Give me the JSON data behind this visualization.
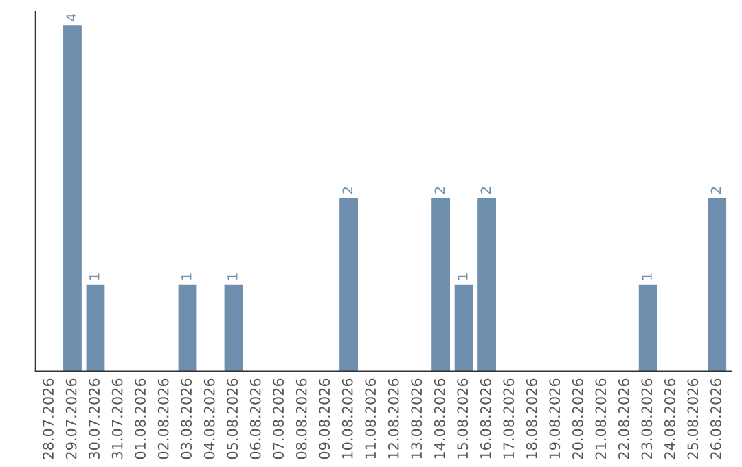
{
  "chart_data": {
    "type": "bar",
    "categories": [
      "28.07.2026",
      "29.07.2026",
      "30.07.2026",
      "31.07.2026",
      "01.08.2026",
      "02.08.2026",
      "03.08.2026",
      "04.08.2026",
      "05.08.2026",
      "06.08.2026",
      "07.08.2026",
      "08.08.2026",
      "09.08.2026",
      "10.08.2026",
      "11.08.2026",
      "12.08.2026",
      "13.08.2026",
      "14.08.2026",
      "15.08.2026",
      "16.08.2026",
      "17.08.2026",
      "18.08.2026",
      "19.08.2026",
      "20.08.2026",
      "21.08.2026",
      "22.08.2026",
      "23.08.2026",
      "24.08.2026",
      "25.08.2026",
      "26.08.2026"
    ],
    "values": [
      0,
      4,
      1,
      0,
      0,
      0,
      1,
      0,
      1,
      0,
      0,
      0,
      0,
      2,
      0,
      0,
      0,
      2,
      1,
      2,
      0,
      0,
      0,
      0,
      0,
      0,
      1,
      0,
      0,
      2
    ],
    "value_labels": [
      null,
      "4",
      "1",
      null,
      null,
      null,
      "1",
      null,
      "1",
      null,
      null,
      null,
      null,
      "2",
      null,
      null,
      null,
      "2",
      "1",
      "2",
      null,
      null,
      null,
      null,
      null,
      null,
      "1",
      null,
      null,
      "2"
    ],
    "color": "#6f8fae",
    "tick_labels": "x",
    "grid": false,
    "legend": false
  }
}
